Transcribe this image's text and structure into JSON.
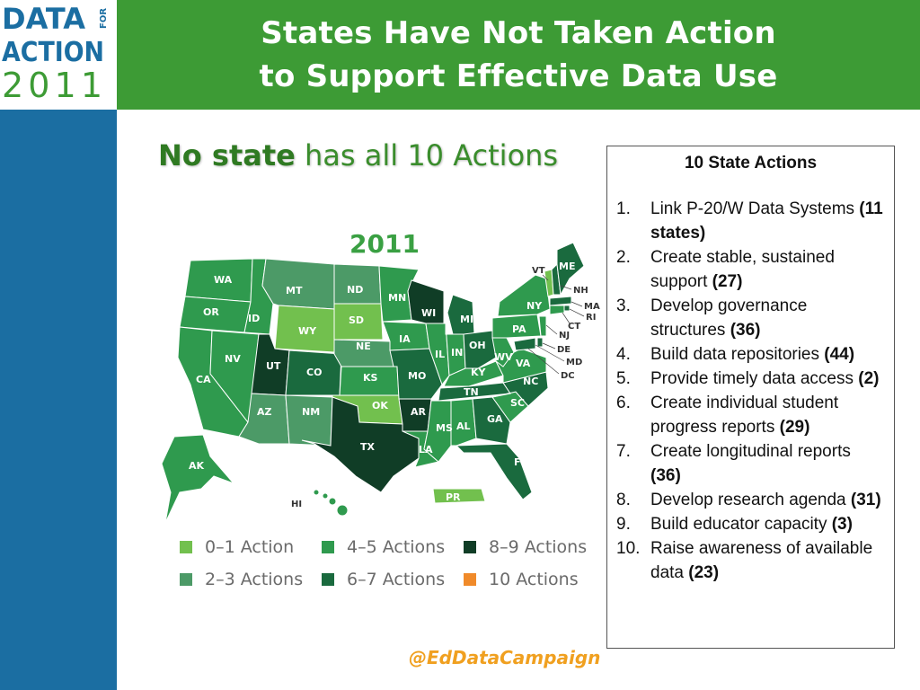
{
  "logo": {
    "line1": "DATA",
    "line1b": "FOR",
    "line2": "ACTION",
    "line3": "2011"
  },
  "header": {
    "title_line1": "States Have Not Taken Action",
    "title_line2": "to Support Effective Data Use"
  },
  "subtitle": {
    "bold": "No state",
    "rest": " has all 10 Actions"
  },
  "map": {
    "year": "2011",
    "colors": {
      "c01": "#72c04e",
      "c23": "#4c9a67",
      "c45": "#2f9a4e",
      "c67": "#1a6a3e",
      "c89": "#103d26",
      "c10": "#f08a2a"
    },
    "states": {
      "WA": "WA",
      "OR": "OR",
      "CA": "CA",
      "NV": "NV",
      "ID": "ID",
      "MT": "MT",
      "WY": "WY",
      "UT": "UT",
      "AZ": "AZ",
      "CO": "CO",
      "NM": "NM",
      "ND": "ND",
      "SD": "SD",
      "NE": "NE",
      "KS": "KS",
      "OK": "OK",
      "TX": "TX",
      "MN": "MN",
      "IA": "IA",
      "MO": "MO",
      "AR": "AR",
      "LA": "LA",
      "WI": "WI",
      "IL": "IL",
      "MI": "MI",
      "IN": "IN",
      "OH": "OH",
      "KY": "KY",
      "TN": "TN",
      "MS": "MS",
      "AL": "AL",
      "GA": "GA",
      "FL": "FL",
      "SC": "SC",
      "NC": "NC",
      "VA": "VA",
      "WV": "WV",
      "PA": "PA",
      "NY": "NY",
      "ME": "ME",
      "VT": "VT",
      "NH": "NH",
      "MA": "MA",
      "RI": "RI",
      "CT": "CT",
      "NJ": "NJ",
      "DE": "DE",
      "MD": "MD",
      "DC": "DC",
      "AK": "AK",
      "HI": "HI",
      "PR": "PR"
    }
  },
  "legend": [
    {
      "label": "0–1 Action",
      "color": "#72c04e"
    },
    {
      "label": "4–5 Actions",
      "color": "#2f9a4e"
    },
    {
      "label": "8–9 Actions",
      "color": "#103d26"
    },
    {
      "label": "2–3 Actions",
      "color": "#4c9a67"
    },
    {
      "label": "6–7 Actions",
      "color": "#1a6a3e"
    },
    {
      "label": "10 Actions",
      "color": "#f08a2a"
    }
  ],
  "actions": {
    "title": "10 State Actions",
    "items": [
      {
        "num": "1.",
        "text": "Link P-20/W Data Systems ",
        "count": "(11 states)"
      },
      {
        "num": "2.",
        "text": "Create stable, sustained support ",
        "count": "(27)"
      },
      {
        "num": "3.",
        "text": "Develop governance structures ",
        "count": "(36)"
      },
      {
        "num": "4.",
        "text": "Build data repositories ",
        "count": "(44)"
      },
      {
        "num": "5.",
        "text": "Provide timely data access ",
        "count": "(2)"
      },
      {
        "num": "6.",
        "text": "Create individual student progress reports ",
        "count": "(29)"
      },
      {
        "num": "7.",
        "text": "Create longitudinal reports ",
        "count": "(36)"
      },
      {
        "num": "8.",
        "text": "Develop research agenda ",
        "count": "(31)"
      },
      {
        "num": "9.",
        "text": "Build educator capacity ",
        "count": "(3)"
      },
      {
        "num": "10.",
        "text": "Raise awareness of available data ",
        "count": "(23)"
      }
    ]
  },
  "footer": {
    "twitter": "@EdDataCampaign"
  }
}
